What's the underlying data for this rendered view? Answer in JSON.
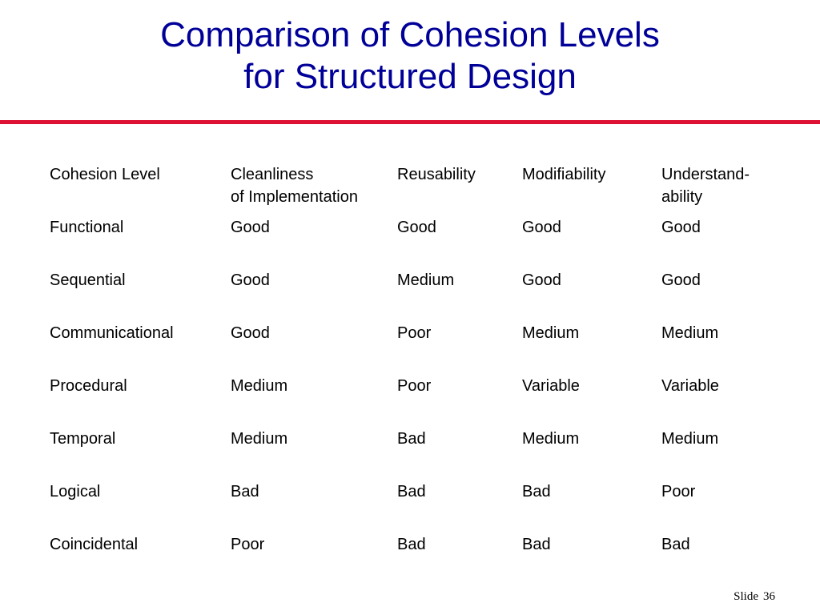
{
  "title": {
    "line1": "Comparison of Cohesion Levels",
    "line2": "for Structured Design"
  },
  "colors": {
    "title": "#000099",
    "rule": "#dd1133"
  },
  "table": {
    "headers": [
      "Cohesion Level",
      "Cleanliness of Implementation",
      "Reusability",
      "Modifiability",
      "Understand-ability"
    ],
    "rows": [
      [
        "Functional",
        "Good",
        "Good",
        "Good",
        "Good"
      ],
      [
        "Sequential",
        "Good",
        "Medium",
        "Good",
        "Good"
      ],
      [
        "Communicational",
        "Good",
        "Poor",
        "Medium",
        "Medium"
      ],
      [
        "Procedural",
        "Medium",
        "Poor",
        "Variable",
        "Variable"
      ],
      [
        "Temporal",
        "Medium",
        "Bad",
        "Medium",
        "Medium"
      ],
      [
        "Logical",
        "Bad",
        "Bad",
        "Bad",
        "Poor"
      ],
      [
        "Coincidental",
        "Poor",
        "Bad",
        "Bad",
        "Bad"
      ]
    ]
  },
  "footer": {
    "label": "Slide",
    "number": "36"
  }
}
